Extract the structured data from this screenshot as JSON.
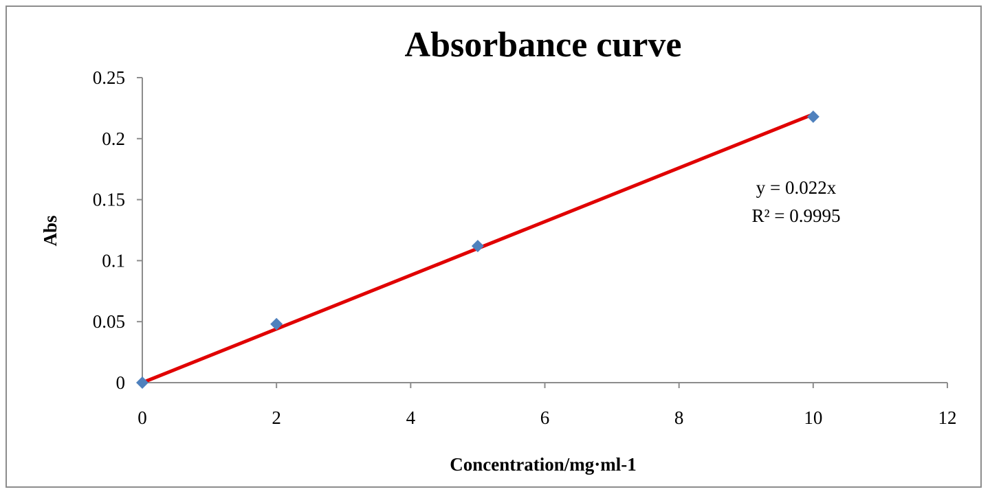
{
  "chart_data": {
    "type": "scatter",
    "title": "Absorbance curve",
    "xlabel": "Concentration/mg·ml-1",
    "ylabel": "Abs",
    "xlim": [
      0,
      12
    ],
    "ylim": [
      0,
      0.25
    ],
    "x_ticks": [
      0,
      2,
      4,
      6,
      8,
      10,
      12
    ],
    "y_ticks": [
      0,
      0.05,
      0.1,
      0.15,
      0.2,
      0.25
    ],
    "x_tick_labels": [
      "0",
      "2",
      "4",
      "6",
      "8",
      "10",
      "12"
    ],
    "y_tick_labels": [
      "0",
      "0.05",
      "0.1",
      "0.15",
      "0.2",
      "0.25"
    ],
    "grid": false,
    "legend": "none",
    "series": [
      {
        "x": [
          0,
          2,
          5,
          10
        ],
        "y": [
          0,
          0.048,
          0.112,
          0.218
        ],
        "marker": "diamond",
        "color": "#4f81bd"
      }
    ],
    "trendline": {
      "slope": 0.022,
      "intercept": 0,
      "x_range": [
        0,
        10
      ],
      "color": "#e00000"
    },
    "annotations": {
      "equation": "y = 0.022x",
      "r_squared": "R² = 0.9995"
    }
  }
}
